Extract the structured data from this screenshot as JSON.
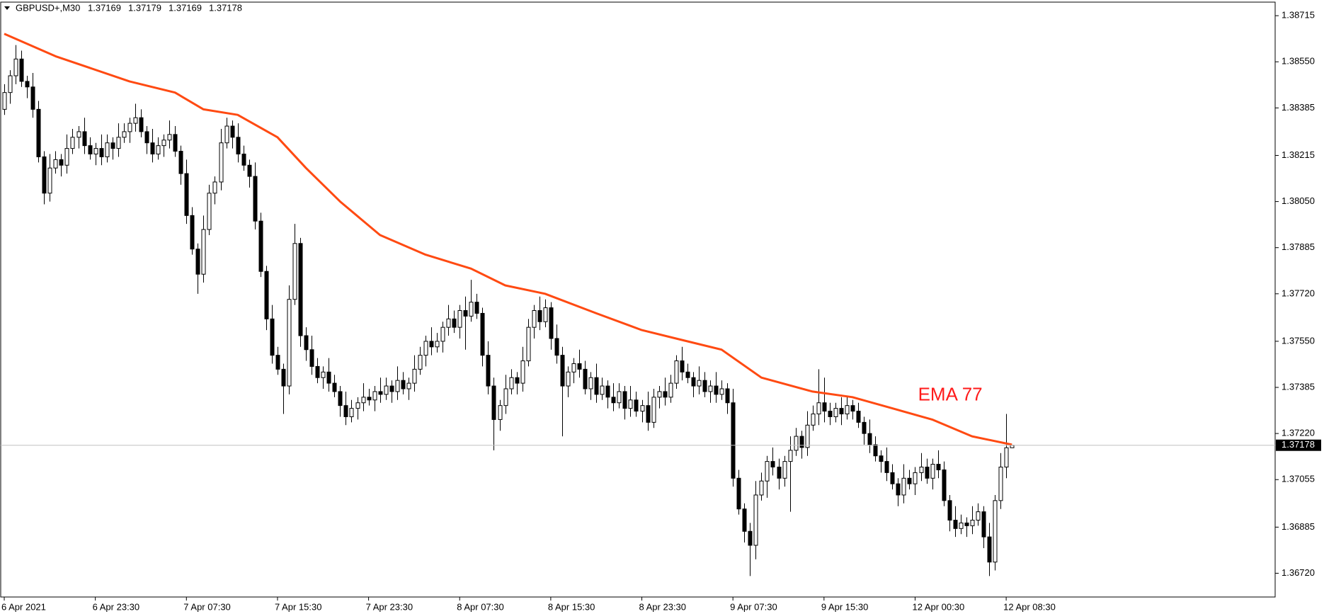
{
  "header": {
    "symbol": "GBPUSD+,M30"
  },
  "chart_data": {
    "type": "candlestick",
    "bull_color": "#ffffff",
    "bear_color": "#000000",
    "candles": [
      [
        1.3838,
        1.3847,
        1.3836,
        1.3844
      ],
      [
        1.3844,
        1.3852,
        1.384,
        1.385
      ],
      [
        1.385,
        1.3861,
        1.3847,
        1.3856
      ],
      [
        1.3856,
        1.3859,
        1.3846,
        1.3848
      ],
      [
        1.3848,
        1.385,
        1.3842,
        1.3846
      ],
      [
        1.3846,
        1.3851,
        1.3835,
        1.3838
      ],
      [
        1.3838,
        1.3841,
        1.3819,
        1.3821
      ],
      [
        1.3821,
        1.3823,
        1.3804,
        1.3808
      ],
      [
        1.3808,
        1.3822,
        1.3805,
        1.3817
      ],
      [
        1.3817,
        1.3823,
        1.3815,
        1.382
      ],
      [
        1.382,
        1.3822,
        1.3814,
        1.3818
      ],
      [
        1.3818,
        1.3829,
        1.3815,
        1.3824
      ],
      [
        1.3824,
        1.3831,
        1.3822,
        1.3828
      ],
      [
        1.3828,
        1.3832,
        1.3824,
        1.383
      ],
      [
        1.383,
        1.3835,
        1.3822,
        1.3825
      ],
      [
        1.3825,
        1.3828,
        1.382,
        1.3822
      ],
      [
        1.3822,
        1.3826,
        1.3818,
        1.3824
      ],
      [
        1.3824,
        1.3829,
        1.3818,
        1.3821
      ],
      [
        1.3821,
        1.3829,
        1.3819,
        1.3826
      ],
      [
        1.3826,
        1.3828,
        1.382,
        1.3824
      ],
      [
        1.3824,
        1.3833,
        1.3821,
        1.3828
      ],
      [
        1.3828,
        1.3833,
        1.3826,
        1.383
      ],
      [
        1.383,
        1.3835,
        1.3826,
        1.3833
      ],
      [
        1.3833,
        1.384,
        1.383,
        1.3835
      ],
      [
        1.3835,
        1.3838,
        1.3828,
        1.383
      ],
      [
        1.383,
        1.3832,
        1.3822,
        1.3826
      ],
      [
        1.3826,
        1.3831,
        1.3819,
        1.3822
      ],
      [
        1.3822,
        1.3828,
        1.382,
        1.3825
      ],
      [
        1.3825,
        1.3829,
        1.3821,
        1.3827
      ],
      [
        1.3827,
        1.3834,
        1.3824,
        1.3829
      ],
      [
        1.3829,
        1.3832,
        1.3821,
        1.3823
      ],
      [
        1.3823,
        1.3825,
        1.3811,
        1.3815
      ],
      [
        1.3815,
        1.382,
        1.3797,
        1.38
      ],
      [
        1.38,
        1.3803,
        1.3786,
        1.3788
      ],
      [
        1.3788,
        1.379,
        1.3772,
        1.3779
      ],
      [
        1.3779,
        1.38,
        1.3776,
        1.3795
      ],
      [
        1.3795,
        1.3811,
        1.3793,
        1.3808
      ],
      [
        1.3808,
        1.3814,
        1.3804,
        1.3812
      ],
      [
        1.3812,
        1.3831,
        1.3809,
        1.3826
      ],
      [
        1.3826,
        1.3835,
        1.3824,
        1.3832
      ],
      [
        1.3832,
        1.3834,
        1.3824,
        1.3828
      ],
      [
        1.3828,
        1.3833,
        1.3819,
        1.3822
      ],
      [
        1.3822,
        1.3825,
        1.3816,
        1.3818
      ],
      [
        1.3818,
        1.382,
        1.381,
        1.3814
      ],
      [
        1.3814,
        1.3819,
        1.3795,
        1.3798
      ],
      [
        1.3798,
        1.3801,
        1.3778,
        1.378
      ],
      [
        1.378,
        1.3782,
        1.3759,
        1.3763
      ],
      [
        1.3763,
        1.3768,
        1.3747,
        1.375
      ],
      [
        1.375,
        1.3753,
        1.3743,
        1.3745
      ],
      [
        1.3745,
        1.3747,
        1.3729,
        1.3739
      ],
      [
        1.3739,
        1.3775,
        1.3736,
        1.377
      ],
      [
        1.377,
        1.3797,
        1.3768,
        1.379
      ],
      [
        1.379,
        1.3792,
        1.3753,
        1.3757
      ],
      [
        1.3757,
        1.376,
        1.3748,
        1.3752
      ],
      [
        1.3752,
        1.3757,
        1.3743,
        1.3746
      ],
      [
        1.3746,
        1.3749,
        1.374,
        1.3742
      ],
      [
        1.3742,
        1.3746,
        1.3738,
        1.3744
      ],
      [
        1.3744,
        1.3749,
        1.3737,
        1.374
      ],
      [
        1.374,
        1.3743,
        1.3735,
        1.3737
      ],
      [
        1.3737,
        1.3739,
        1.3728,
        1.3732
      ],
      [
        1.3732,
        1.3737,
        1.3725,
        1.3728
      ],
      [
        1.3728,
        1.3734,
        1.3726,
        1.3731
      ],
      [
        1.3731,
        1.3735,
        1.3727,
        1.3733
      ],
      [
        1.3733,
        1.374,
        1.373,
        1.3735
      ],
      [
        1.3735,
        1.3738,
        1.3732,
        1.3734
      ],
      [
        1.3734,
        1.3739,
        1.373,
        1.3737
      ],
      [
        1.3737,
        1.3742,
        1.3733,
        1.3736
      ],
      [
        1.3736,
        1.3742,
        1.3734,
        1.3739
      ],
      [
        1.3739,
        1.3741,
        1.3733,
        1.3737
      ],
      [
        1.3737,
        1.3746,
        1.3734,
        1.3741
      ],
      [
        1.3741,
        1.3744,
        1.3736,
        1.3738
      ],
      [
        1.3738,
        1.3742,
        1.3734,
        1.374
      ],
      [
        1.374,
        1.375,
        1.3737,
        1.3745
      ],
      [
        1.3745,
        1.3753,
        1.3743,
        1.375
      ],
      [
        1.375,
        1.3757,
        1.3746,
        1.3755
      ],
      [
        1.3755,
        1.376,
        1.375,
        1.3753
      ],
      [
        1.3753,
        1.3758,
        1.3751,
        1.3755
      ],
      [
        1.3755,
        1.3762,
        1.3751,
        1.376
      ],
      [
        1.376,
        1.3768,
        1.3757,
        1.3763
      ],
      [
        1.3763,
        1.3766,
        1.3758,
        1.376
      ],
      [
        1.376,
        1.3768,
        1.3756,
        1.3766
      ],
      [
        1.3766,
        1.3771,
        1.3752,
        1.3764
      ],
      [
        1.3764,
        1.3777,
        1.3762,
        1.3769
      ],
      [
        1.3769,
        1.3772,
        1.3763,
        1.3765
      ],
      [
        1.3765,
        1.3767,
        1.3746,
        1.375
      ],
      [
        1.375,
        1.3755,
        1.3736,
        1.3739
      ],
      [
        1.3739,
        1.3742,
        1.3716,
        1.3727
      ],
      [
        1.3727,
        1.3734,
        1.3723,
        1.3732
      ],
      [
        1.3732,
        1.3743,
        1.3729,
        1.3738
      ],
      [
        1.3738,
        1.3745,
        1.3736,
        1.3742
      ],
      [
        1.3742,
        1.3744,
        1.3736,
        1.374
      ],
      [
        1.374,
        1.3753,
        1.3737,
        1.3748
      ],
      [
        1.3748,
        1.3763,
        1.3746,
        1.376
      ],
      [
        1.376,
        1.3768,
        1.3756,
        1.3766
      ],
      [
        1.3766,
        1.3771,
        1.3759,
        1.3762
      ],
      [
        1.3762,
        1.377,
        1.376,
        1.3767
      ],
      [
        1.3767,
        1.3769,
        1.3752,
        1.3756
      ],
      [
        1.3756,
        1.3761,
        1.3747,
        1.375
      ],
      [
        1.375,
        1.3753,
        1.3721,
        1.3739
      ],
      [
        1.3739,
        1.3746,
        1.3735,
        1.3744
      ],
      [
        1.3744,
        1.3749,
        1.374,
        1.3747
      ],
      [
        1.3747,
        1.3752,
        1.3742,
        1.3745
      ],
      [
        1.3745,
        1.3748,
        1.3736,
        1.3738
      ],
      [
        1.3738,
        1.3744,
        1.3734,
        1.3742
      ],
      [
        1.3742,
        1.3747,
        1.3733,
        1.3736
      ],
      [
        1.3736,
        1.3742,
        1.3734,
        1.3739
      ],
      [
        1.3739,
        1.3741,
        1.3731,
        1.3735
      ],
      [
        1.3735,
        1.374,
        1.373,
        1.3733
      ],
      [
        1.3733,
        1.374,
        1.3731,
        1.3737
      ],
      [
        1.3737,
        1.3739,
        1.3727,
        1.3731
      ],
      [
        1.3731,
        1.3739,
        1.3728,
        1.3734
      ],
      [
        1.3734,
        1.3737,
        1.3728,
        1.373
      ],
      [
        1.373,
        1.3734,
        1.3726,
        1.3732
      ],
      [
        1.3732,
        1.3737,
        1.3723,
        1.3726
      ],
      [
        1.3726,
        1.3738,
        1.3724,
        1.3735
      ],
      [
        1.3735,
        1.3739,
        1.3731,
        1.3737
      ],
      [
        1.3737,
        1.3742,
        1.3732,
        1.3735
      ],
      [
        1.3735,
        1.3743,
        1.3733,
        1.374
      ],
      [
        1.374,
        1.375,
        1.3738,
        1.3748
      ],
      [
        1.3748,
        1.3753,
        1.3741,
        1.3744
      ],
      [
        1.3744,
        1.3747,
        1.374,
        1.3742
      ],
      [
        1.3742,
        1.3744,
        1.3735,
        1.3739
      ],
      [
        1.3739,
        1.3746,
        1.3736,
        1.3741
      ],
      [
        1.3741,
        1.3744,
        1.3735,
        1.3737
      ],
      [
        1.3737,
        1.3741,
        1.3733,
        1.3739
      ],
      [
        1.3739,
        1.3744,
        1.3733,
        1.3736
      ],
      [
        1.3736,
        1.3741,
        1.3734,
        1.3738
      ],
      [
        1.3738,
        1.374,
        1.3729,
        1.3733
      ],
      [
        1.3733,
        1.3738,
        1.3703,
        1.3706
      ],
      [
        1.3706,
        1.3709,
        1.3693,
        1.3695
      ],
      [
        1.3695,
        1.3697,
        1.3683,
        1.3687
      ],
      [
        1.3687,
        1.369,
        1.3671,
        1.3682
      ],
      [
        1.3682,
        1.3705,
        1.3677,
        1.37
      ],
      [
        1.37,
        1.3708,
        1.3698,
        1.3705
      ],
      [
        1.3705,
        1.3714,
        1.3699,
        1.3712
      ],
      [
        1.3712,
        1.3717,
        1.3707,
        1.371
      ],
      [
        1.371,
        1.3713,
        1.3702,
        1.3706
      ],
      [
        1.3706,
        1.3714,
        1.3703,
        1.3712
      ],
      [
        1.3712,
        1.3721,
        1.3694,
        1.3716
      ],
      [
        1.3716,
        1.3724,
        1.3714,
        1.3721
      ],
      [
        1.3721,
        1.3723,
        1.3713,
        1.3717
      ],
      [
        1.3717,
        1.373,
        1.3714,
        1.3725
      ],
      [
        1.3725,
        1.3732,
        1.3723,
        1.3729
      ],
      [
        1.3729,
        1.3745,
        1.3725,
        1.3733
      ],
      [
        1.3733,
        1.3742,
        1.3726,
        1.373
      ],
      [
        1.373,
        1.3733,
        1.3725,
        1.3728
      ],
      [
        1.3728,
        1.3733,
        1.3726,
        1.3731
      ],
      [
        1.3731,
        1.3735,
        1.3725,
        1.3729
      ],
      [
        1.3729,
        1.3735,
        1.3727,
        1.3732
      ],
      [
        1.3732,
        1.3734,
        1.3727,
        1.373
      ],
      [
        1.373,
        1.3733,
        1.3724,
        1.3726
      ],
      [
        1.3726,
        1.3728,
        1.3718,
        1.3722
      ],
      [
        1.3722,
        1.3727,
        1.3715,
        1.3718
      ],
      [
        1.3718,
        1.3721,
        1.3712,
        1.3714
      ],
      [
        1.3714,
        1.3716,
        1.3708,
        1.3712
      ],
      [
        1.3712,
        1.3717,
        1.3705,
        1.3708
      ],
      [
        1.3708,
        1.3711,
        1.3702,
        1.3704
      ],
      [
        1.3704,
        1.3706,
        1.3696,
        1.37
      ],
      [
        1.37,
        1.3711,
        1.3697,
        1.3706
      ],
      [
        1.3706,
        1.3709,
        1.3702,
        1.3704
      ],
      [
        1.3704,
        1.371,
        1.37,
        1.3708
      ],
      [
        1.3708,
        1.3715,
        1.3705,
        1.371
      ],
      [
        1.371,
        1.3713,
        1.3704,
        1.3706
      ],
      [
        1.3706,
        1.3713,
        1.3702,
        1.3711
      ],
      [
        1.3711,
        1.3716,
        1.3706,
        1.3709
      ],
      [
        1.3709,
        1.3712,
        1.3696,
        1.3698
      ],
      [
        1.3698,
        1.37,
        1.3687,
        1.3691
      ],
      [
        1.3691,
        1.3696,
        1.3685,
        1.3688
      ],
      [
        1.3688,
        1.3693,
        1.3686,
        1.369
      ],
      [
        1.369,
        1.3692,
        1.3685,
        1.3689
      ],
      [
        1.3689,
        1.3696,
        1.3686,
        1.3691
      ],
      [
        1.3691,
        1.3697,
        1.3689,
        1.3694
      ],
      [
        1.3694,
        1.3696,
        1.3681,
        1.3685
      ],
      [
        1.3685,
        1.369,
        1.3671,
        1.3676
      ],
      [
        1.3676,
        1.37,
        1.3673,
        1.3698
      ],
      [
        1.3698,
        1.3715,
        1.3695,
        1.371
      ],
      [
        1.371,
        1.3729,
        1.3706,
        1.37169
      ],
      [
        1.37169,
        1.37179,
        1.37169,
        1.37178
      ]
    ],
    "series": [
      {
        "name": "EMA 77",
        "color": "#ff4a12",
        "axis": "y",
        "x": [
          0,
          9,
          22,
          30,
          35,
          41,
          48,
          53,
          59,
          66,
          74,
          82,
          88,
          95,
          104,
          112,
          118,
          126,
          133,
          142,
          149,
          156,
          163,
          170,
          177
        ],
        "values": [
          1.3865,
          1.3857,
          1.3848,
          1.3844,
          1.3838,
          1.3836,
          1.3828,
          1.3817,
          1.3805,
          1.3793,
          1.3786,
          1.3781,
          1.3775,
          1.3772,
          1.3765,
          1.3759,
          1.3756,
          1.3752,
          1.3742,
          1.3737,
          1.3735,
          1.3731,
          1.3727,
          1.3721,
          1.3718
        ]
      }
    ],
    "xlim": [
      0,
      222.5
    ],
    "xticks": [
      {
        "value": 0,
        "label": "6 Apr 2021"
      },
      {
        "value": 16,
        "label": "6 Apr 23:30"
      },
      {
        "value": 32,
        "label": "7 Apr 07:30"
      },
      {
        "value": 48,
        "label": "7 Apr 15:30"
      },
      {
        "value": 64,
        "label": "7 Apr 23:30"
      },
      {
        "value": 80,
        "label": "8 Apr 07:30"
      },
      {
        "value": 96,
        "label": "8 Apr 15:30"
      },
      {
        "value": 112,
        "label": "8 Apr 23:30"
      },
      {
        "value": 128,
        "label": "9 Apr 07:30"
      },
      {
        "value": 144,
        "label": "9 Apr 15:30"
      },
      {
        "value": 160,
        "label": "12 Apr 00:30"
      },
      {
        "value": 176,
        "label": "12 Apr 08:30"
      }
    ],
    "ylim": [
      1.36635,
      1.38761
    ],
    "yticks": [
      1.38715,
      {
        "value": 1.3855,
        "label": "1.38550"
      },
      1.38385,
      1.38215,
      {
        "value": 1.3805,
        "label": "1.38050"
      },
      1.37885,
      {
        "value": 1.3772,
        "label": "1.37720"
      },
      {
        "value": 1.3755,
        "label": "1.37550"
      },
      1.37385,
      {
        "value": 1.3722,
        "label": "1.37220"
      },
      1.37055,
      1.36885,
      {
        "value": 1.3672,
        "label": "1.36720"
      }
    ]
  }
}
